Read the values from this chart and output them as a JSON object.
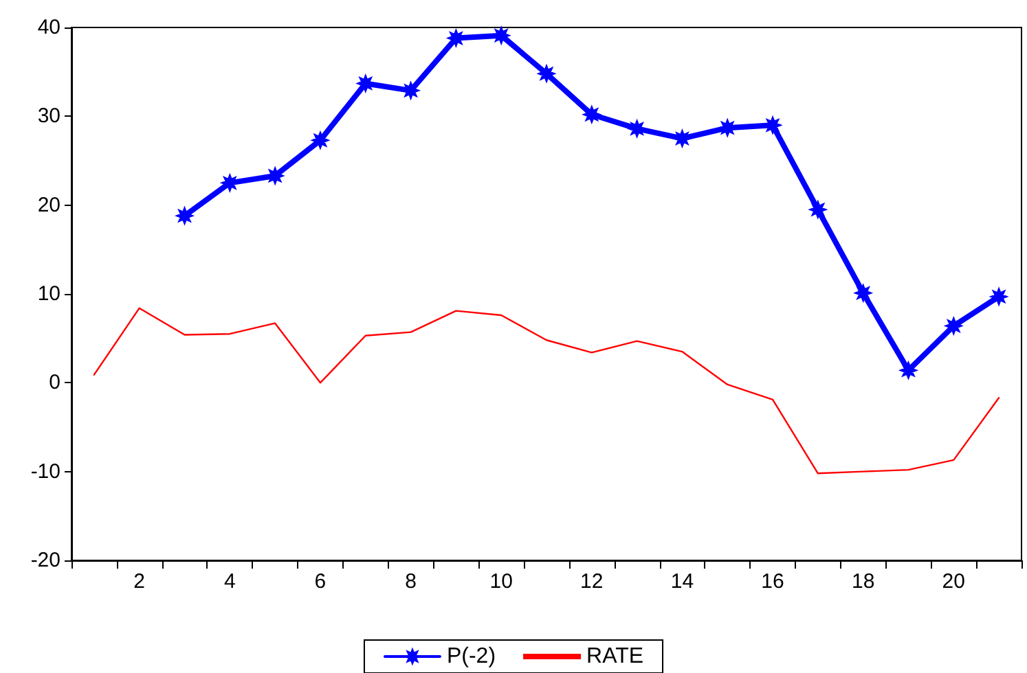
{
  "chart_data": {
    "type": "line",
    "categories": [
      null,
      "2",
      null,
      "4",
      null,
      "6",
      null,
      "8",
      null,
      "10",
      null,
      "12",
      null,
      "14",
      null,
      "16",
      null,
      "18",
      null,
      "20",
      null
    ],
    "series": [
      {
        "name": "P(-2)",
        "color": "#0000ff",
        "marker": "star",
        "values": [
          null,
          null,
          18.8,
          22.5,
          23.3,
          27.3,
          33.7,
          32.9,
          38.8,
          39.1,
          34.8,
          30.2,
          28.6,
          27.5,
          28.7,
          29.0,
          19.5,
          10.1,
          1.4,
          6.4,
          9.7
        ]
      },
      {
        "name": "RATE",
        "color": "#ff0000",
        "marker": "none",
        "values": [
          0.9,
          8.4,
          5.4,
          5.5,
          6.7,
          0.0,
          5.3,
          5.7,
          8.1,
          7.6,
          4.8,
          3.4,
          4.7,
          3.5,
          -0.2,
          -1.9,
          -10.2,
          -10.0,
          -9.8,
          -8.7,
          -1.7
        ]
      }
    ],
    "ylim": [
      -20,
      40
    ],
    "yticks": [
      -20,
      -10,
      0,
      10,
      20,
      30,
      40
    ],
    "grid": false,
    "legend": "bottom"
  }
}
